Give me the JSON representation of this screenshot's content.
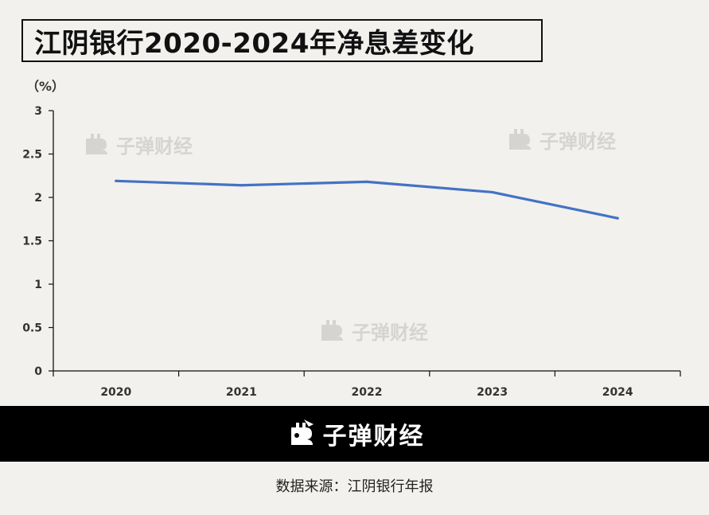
{
  "title": "江阴银行2020-2024年净息差变化",
  "unit": "（%）",
  "watermark": "子弹财经",
  "banner": {
    "brand": "子弹财经"
  },
  "source": "数据来源：江阴银行年报",
  "colors": {
    "line": "#4472c4",
    "axis": "#111111",
    "banner": "#000000",
    "background": "#f2f1ee"
  },
  "icons": {
    "brand_logo": "bullet-logo-icon"
  },
  "chart_data": {
    "type": "line",
    "categories": [
      "2020",
      "2021",
      "2022",
      "2023",
      "2024"
    ],
    "series": [
      {
        "values": [
          2.19,
          2.14,
          2.18,
          2.06,
          1.76
        ]
      }
    ],
    "ylim": [
      0,
      3
    ],
    "yticks": [
      "0",
      "0.5",
      "1",
      "1.5",
      "2",
      "2.5",
      "3"
    ],
    "ylabel": "（%）",
    "xlabel": "",
    "grid": false,
    "legend": "none"
  }
}
